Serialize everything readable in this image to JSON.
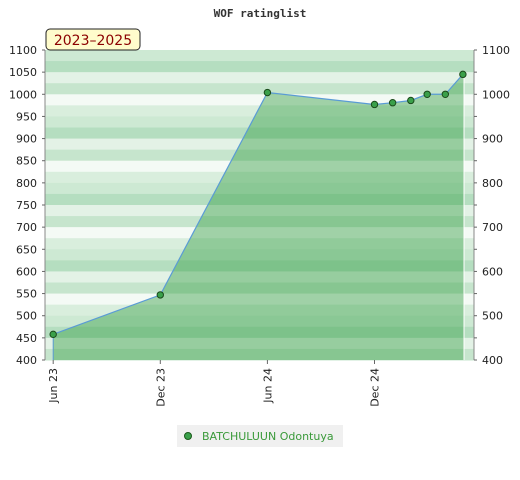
{
  "chart_data": {
    "type": "area",
    "title": "WOF ratinglist",
    "period_badge": "2023–2025",
    "ylim": [
      400,
      1100
    ],
    "yticks": [
      400,
      450,
      500,
      550,
      600,
      650,
      700,
      750,
      800,
      850,
      900,
      950,
      1000,
      1050,
      1100
    ],
    "right_yticks": [
      400,
      500,
      600,
      700,
      800,
      900,
      1000,
      1100
    ],
    "xlim": [
      "2023-05-18",
      "2025-05-20"
    ],
    "xticks": [
      {
        "label": "Jun 23",
        "date": "2023-06-01"
      },
      {
        "label": "Dec 23",
        "date": "2023-12-01"
      },
      {
        "label": "Jun 24",
        "date": "2024-06-01"
      },
      {
        "label": "Dec 24",
        "date": "2024-12-01"
      }
    ],
    "series": [
      {
        "name": "BATCHULUUN Odontuya",
        "color": "#5a9bd5",
        "fill": "#3aa04a",
        "points": [
          {
            "date": "2023-06-01",
            "value": 458
          },
          {
            "date": "2023-12-01",
            "value": 547
          },
          {
            "date": "2024-06-01",
            "value": 1004
          },
          {
            "date": "2024-12-01",
            "value": 977
          },
          {
            "date": "2025-01-01",
            "value": 981
          },
          {
            "date": "2025-02-01",
            "value": 986
          },
          {
            "date": "2025-03-01",
            "value": 1000
          },
          {
            "date": "2025-04-01",
            "value": 1000
          },
          {
            "date": "2025-05-01",
            "value": 1045
          }
        ]
      }
    ],
    "grid": true,
    "legend_position": "bottom-center"
  }
}
